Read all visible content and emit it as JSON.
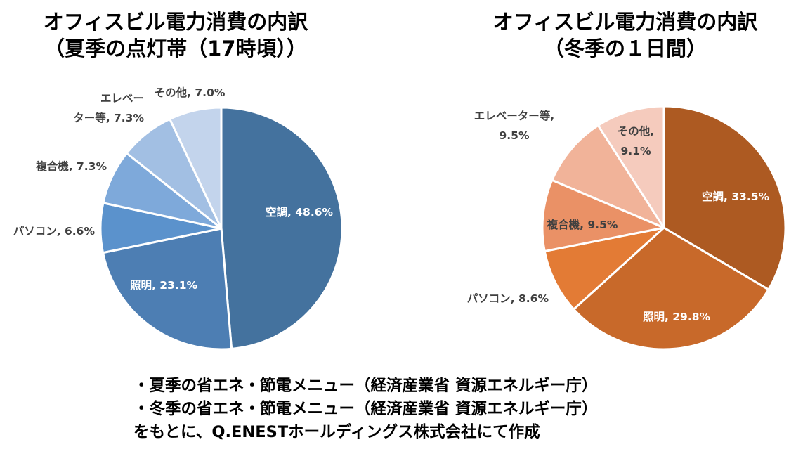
{
  "chart_data": [
    {
      "type": "pie",
      "title_lines": [
        "オフィスビル電力消費の内訳",
        "（夏季の点灯帯（17時頃））"
      ],
      "slices": [
        {
          "label": "空調",
          "value": 48.6,
          "display": "空調, 48.6%",
          "color": "#44729e"
        },
        {
          "label": "照明",
          "value": 23.1,
          "display": "照明, 23.1%",
          "color": "#4d7eb3"
        },
        {
          "label": "パソコン",
          "value": 6.6,
          "display": "パソコン, 6.6%",
          "color": "#5b92cc"
        },
        {
          "label": "複合機",
          "value": 7.3,
          "display": "複合機, 7.3%",
          "color": "#7ea9da"
        },
        {
          "label": "エレベーター等",
          "value": 7.3,
          "display_lines": [
            "エレベー",
            "ター等, 7.3%"
          ],
          "color": "#a2bfe3"
        },
        {
          "label": "その他",
          "value": 7.0,
          "display": "その他, 7.0%",
          "color": "#c3d4ec"
        }
      ]
    },
    {
      "type": "pie",
      "title_lines": [
        "オフィスビル電力消費の内訳",
        "（冬季の１日間）"
      ],
      "slices": [
        {
          "label": "空調",
          "value": 33.5,
          "display": "空調, 33.5%",
          "color": "#ad5a22"
        },
        {
          "label": "照明",
          "value": 29.8,
          "display": "照明, 29.8%",
          "color": "#c8692a"
        },
        {
          "label": "パソコン",
          "value": 8.6,
          "display": "パソコン, 8.6%",
          "color": "#e37b35"
        },
        {
          "label": "複合機",
          "value": 9.5,
          "display": "複合機, 9.5%",
          "color": "#ea9166"
        },
        {
          "label": "エレベーター等",
          "value": 9.5,
          "display_lines": [
            "エレベーター等,",
            "9.5%"
          ],
          "color": "#f1b399"
        },
        {
          "label": "その他",
          "value": 9.1,
          "display_lines": [
            "その他,",
            "9.1%"
          ],
          "color": "#f5cbbd"
        }
      ]
    }
  ],
  "footnote": {
    "lines": [
      "・夏季の省エネ・節電メニュー（経済産業省 資源エネルギー庁）",
      "・冬季の省エネ・節電メニュー（経済産業省 資源エネルギー庁）",
      "をもとに、Q.ENESTホールディングス株式会社にて作成"
    ]
  }
}
